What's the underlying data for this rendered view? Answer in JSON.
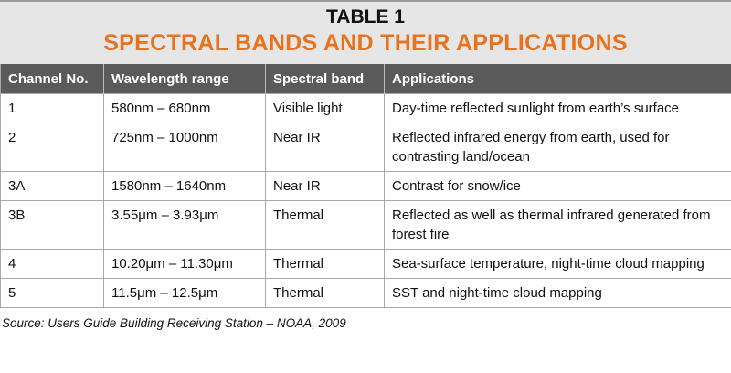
{
  "header": {
    "title": "TABLE 1",
    "subtitle": "SPECTRAL BANDS AND THEIR APPLICATIONS"
  },
  "table": {
    "columns": [
      "Channel No.",
      "Wavelength range",
      "Spectral band",
      "Applications"
    ],
    "rows": [
      [
        "1",
        "580nm – 680nm",
        "Visible light",
        "Day-time reflected sunlight from earth’s surface"
      ],
      [
        "2",
        "725nm – 1000nm",
        "Near IR",
        "Reflected infrared energy from earth, used for contrasting land/ocean"
      ],
      [
        "3A",
        "1580nm – 1640nm",
        "Near IR",
        "Contrast for snow/ice"
      ],
      [
        "3B",
        "3.55μm – 3.93μm",
        "Thermal",
        "Reflected as well as thermal infrared generated from forest fire"
      ],
      [
        "4",
        "10.20μm – 11.30μm",
        "Thermal",
        "Sea-surface temperature, night-time cloud mapping"
      ],
      [
        "5",
        "11.5μm – 12.5μm",
        "Thermal",
        "SST and night-time cloud mapping"
      ]
    ]
  },
  "source": "Source: Users Guide Building Receiving Station – NOAA, 2009"
}
